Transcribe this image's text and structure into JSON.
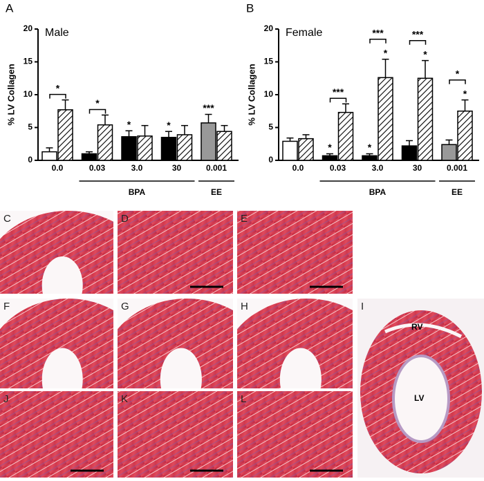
{
  "chart_data": [
    {
      "type": "bar",
      "panel": "A",
      "title": "Male",
      "y_label": "% LV Collagen",
      "categories": [
        "0.0",
        "0.03",
        "3.0",
        "30",
        "0.001"
      ],
      "group_labels": [
        null,
        "BPA",
        "BPA",
        "BPA",
        "EE"
      ],
      "ylim": [
        0,
        20
      ],
      "yticks": [
        0,
        5,
        10,
        15,
        20
      ],
      "series": [
        {
          "colors": [
            "#ffffff",
            "#000000",
            "#000000",
            "#000000",
            "#999999"
          ],
          "values": [
            1.3,
            1.0,
            3.6,
            3.5,
            5.7
          ],
          "errors": [
            0.6,
            0.3,
            0.9,
            0.9,
            1.3
          ],
          "value_annotations": [
            null,
            null,
            "*",
            "*",
            "***"
          ]
        },
        {
          "color": "#ffffff",
          "hatch": true,
          "values": [
            7.7,
            5.4,
            3.7,
            3.9,
            4.4
          ],
          "errors": [
            1.5,
            1.5,
            1.6,
            1.4,
            0.9
          ],
          "value_annotations": [
            null,
            null,
            null,
            null,
            null
          ]
        }
      ],
      "bracket_annotations": [
        "*",
        "*",
        null,
        null,
        null
      ]
    },
    {
      "type": "bar",
      "panel": "B",
      "title": "Female",
      "y_label": "% LV Collagen",
      "categories": [
        "0.0",
        "0.03",
        "3.0",
        "30",
        "0.001"
      ],
      "group_labels": [
        null,
        "BPA",
        "BPA",
        "BPA",
        "EE"
      ],
      "ylim": [
        0,
        20
      ],
      "yticks": [
        0,
        5,
        10,
        15,
        20
      ],
      "series": [
        {
          "colors": [
            "#ffffff",
            "#000000",
            "#000000",
            "#000000",
            "#999999"
          ],
          "values": [
            2.9,
            0.7,
            0.7,
            2.2,
            2.4
          ],
          "errors": [
            0.5,
            0.3,
            0.3,
            0.8,
            0.7
          ],
          "value_annotations": [
            null,
            "*",
            "*",
            null,
            null
          ]
        },
        {
          "color": "#ffffff",
          "hatch": true,
          "values": [
            3.3,
            7.3,
            12.6,
            12.5,
            7.5
          ],
          "errors": [
            0.6,
            1.3,
            2.8,
            2.7,
            1.7
          ],
          "value_annotations": [
            null,
            null,
            "*",
            "*",
            "*"
          ]
        }
      ],
      "bracket_annotations": [
        null,
        "***",
        "***",
        "***",
        "*"
      ]
    }
  ],
  "panels": [
    {
      "label": "C"
    },
    {
      "label": "D"
    },
    {
      "label": "E"
    },
    {
      "label": "F"
    },
    {
      "label": "G"
    },
    {
      "label": "H"
    },
    {
      "label": "J"
    },
    {
      "label": "K"
    },
    {
      "label": "L"
    },
    {
      "label": "I",
      "annotations": [
        "RV",
        "LV"
      ]
    }
  ]
}
